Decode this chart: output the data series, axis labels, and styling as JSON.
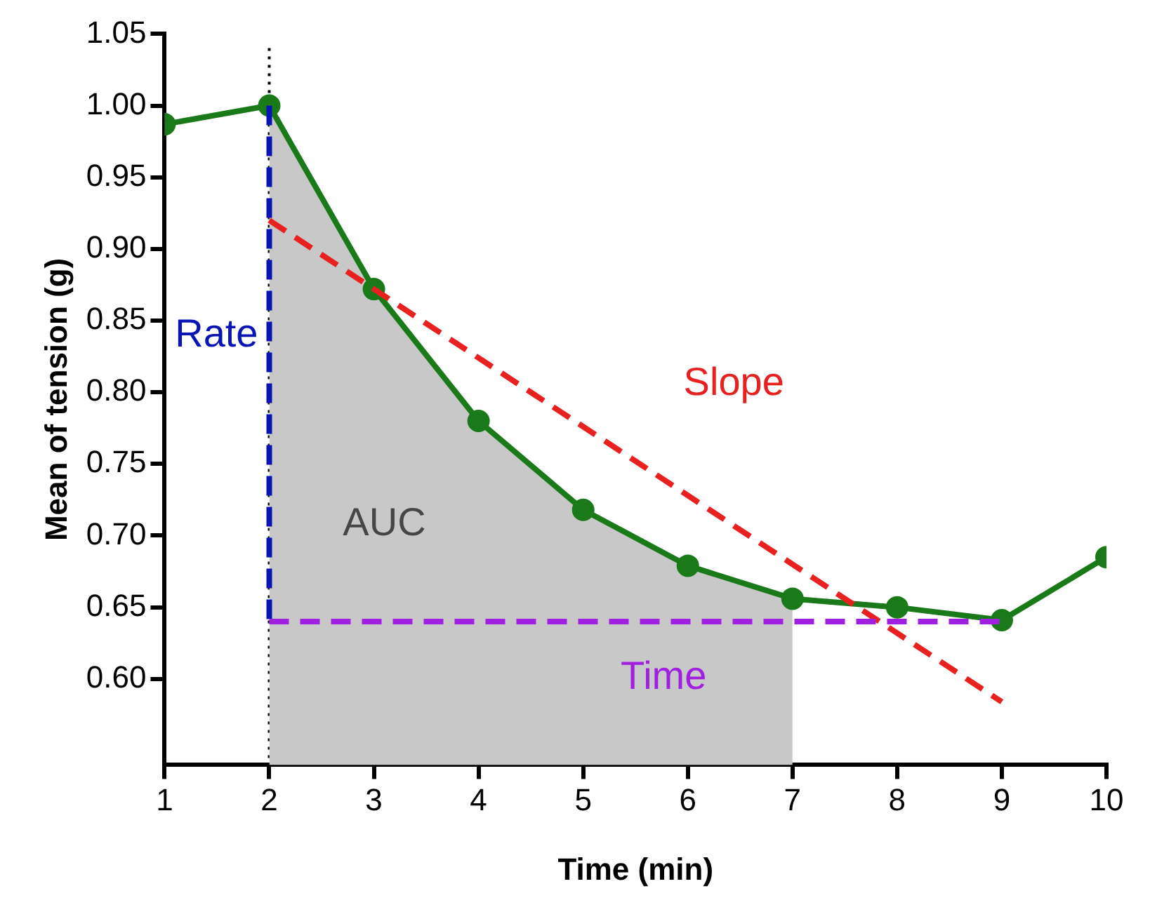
{
  "chart_data": {
    "type": "line",
    "xlabel": "Time (min)",
    "ylabel": "Mean of tension (g)",
    "xlim": [
      1,
      10
    ],
    "xticks": [
      1,
      2,
      3,
      4,
      5,
      6,
      7,
      8,
      9,
      10
    ],
    "ylim": [
      0.54,
      1.05
    ],
    "yticks": [
      {
        "value": 0.6,
        "label": "0.60"
      },
      0.65,
      {
        "value": 0.7,
        "label": "0.70"
      },
      0.75,
      {
        "value": 0.8,
        "label": "0.80"
      },
      0.85,
      {
        "value": 0.9,
        "label": "0.90"
      },
      0.95,
      {
        "value": 1.0,
        "label": "1.00"
      },
      1.05
    ],
    "grid": false,
    "legend": false,
    "series": [
      {
        "type": "area",
        "name": "AUC",
        "color": "#c8c8c8",
        "x": [
          2,
          3,
          4,
          5,
          6,
          7
        ],
        "values": [
          1.0,
          0.872,
          0.78,
          0.718,
          0.679,
          0.656
        ],
        "marker": "none"
      },
      {
        "color": "#1a7a1a",
        "x": [
          1,
          2,
          3,
          4,
          5,
          6,
          7,
          8,
          9,
          10
        ],
        "values": [
          0.987,
          1.0,
          0.872,
          0.78,
          0.718,
          0.679,
          0.656,
          0.65,
          0.641,
          0.685
        ],
        "marker": "circle",
        "line_style": "solid"
      },
      {
        "type": "line",
        "name": "Rate",
        "color": "#0a14b4",
        "x": [
          2,
          2
        ],
        "values": [
          1.0,
          0.64
        ],
        "marker": "none",
        "line_style": "dashed"
      },
      {
        "type": "line",
        "name": "Slope",
        "color": "#e82020",
        "x": [
          2,
          9
        ],
        "values": [
          0.92,
          0.584
        ],
        "marker": "none",
        "line_style": "dashed"
      },
      {
        "type": "line",
        "name": "Time",
        "color": "#a020e0",
        "x": [
          2,
          9
        ],
        "values": [
          0.64,
          0.64
        ],
        "marker": "none",
        "line_style": "dashed"
      }
    ],
    "ref_lines": [
      {
        "axis": "x",
        "value": 2,
        "color": "#000000",
        "line_style": "dotted"
      }
    ]
  }
}
